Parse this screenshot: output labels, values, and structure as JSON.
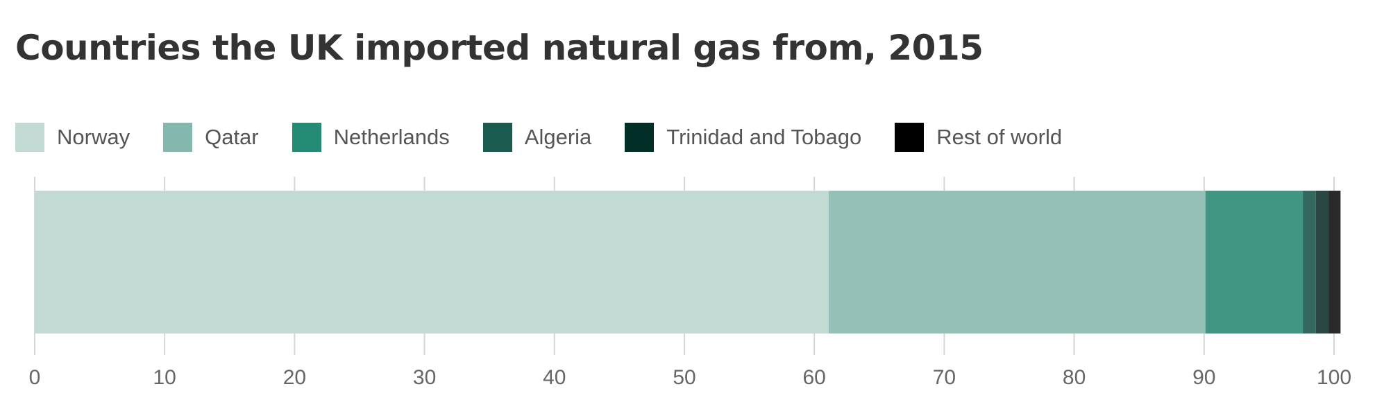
{
  "chart_data": {
    "type": "bar",
    "orientation": "horizontal",
    "stacked": true,
    "title": "Countries the UK imported natural gas from, 2015",
    "xlabel": "",
    "ylabel": "",
    "xlim": [
      0,
      100
    ],
    "xticks": [
      "0",
      "10",
      "20",
      "30",
      "40",
      "50",
      "60",
      "70",
      "80",
      "90",
      "100"
    ],
    "grid": true,
    "legend_position": "top-left",
    "series": [
      {
        "name": "Norway",
        "value": 61.1,
        "color": "#c3d9d4"
      },
      {
        "name": "Qatar",
        "value": 29.0,
        "color": "#94c0b8"
      },
      {
        "name": "Netherlands",
        "value": 7.5,
        "color": "#419583"
      },
      {
        "name": "Algeria",
        "value": 1.0,
        "color": "#33685f"
      },
      {
        "name": "Trinidad and Tobago",
        "value": 1.0,
        "color": "#2b4743"
      },
      {
        "name": "Rest of world",
        "value": 0.9,
        "color": "#2a2a2a"
      }
    ],
    "legend_swatches": [
      "#c3d9d4",
      "#84b8ae",
      "#238b73",
      "#1a5b50",
      "#022e28",
      "#000000"
    ]
  }
}
